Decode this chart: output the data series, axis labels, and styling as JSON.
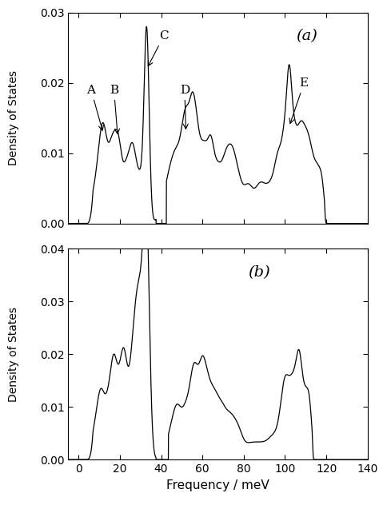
{
  "xlim": [
    -5,
    140
  ],
  "xticks": [
    0,
    20,
    40,
    60,
    80,
    100,
    120,
    140
  ],
  "xlabel": "Frequency / meV",
  "ylabel": "Density of States",
  "panel_a": {
    "ylim": [
      0,
      0.03
    ],
    "yticks": [
      0.0,
      0.01,
      0.02,
      0.03
    ],
    "label": "(a)"
  },
  "panel_b": {
    "ylim": [
      0,
      0.04
    ],
    "yticks": [
      0.0,
      0.01,
      0.02,
      0.03,
      0.04
    ],
    "label": "(b)"
  },
  "line_color": "#000000",
  "line_width": 0.9,
  "bg_color": "#ffffff"
}
